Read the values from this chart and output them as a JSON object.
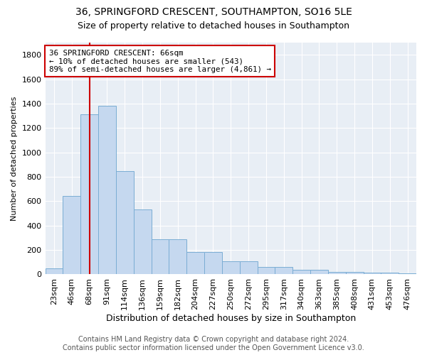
{
  "title": "36, SPRINGFORD CRESCENT, SOUTHAMPTON, SO16 5LE",
  "subtitle": "Size of property relative to detached houses in Southampton",
  "xlabel": "Distribution of detached houses by size in Southampton",
  "ylabel": "Number of detached properties",
  "categories": [
    "23sqm",
    "46sqm",
    "68sqm",
    "91sqm",
    "114sqm",
    "136sqm",
    "159sqm",
    "182sqm",
    "204sqm",
    "227sqm",
    "250sqm",
    "272sqm",
    "295sqm",
    "317sqm",
    "340sqm",
    "363sqm",
    "385sqm",
    "408sqm",
    "431sqm",
    "453sqm",
    "476sqm"
  ],
  "values": [
    50,
    645,
    1310,
    1380,
    845,
    530,
    290,
    285,
    185,
    185,
    110,
    110,
    60,
    60,
    38,
    38,
    22,
    22,
    12,
    12,
    8
  ],
  "bar_color": "#c5d8ef",
  "bar_edge_color": "#7aadd4",
  "vline_x": 2.0,
  "vline_color": "#cc0000",
  "annotation_box_text": "36 SPRINGFORD CRESCENT: 66sqm\n← 10% of detached houses are smaller (543)\n89% of semi-detached houses are larger (4,861) →",
  "annotation_box_color": "#cc0000",
  "annotation_box_bg": "#ffffff",
  "ylim": [
    0,
    1900
  ],
  "yticks": [
    0,
    200,
    400,
    600,
    800,
    1000,
    1200,
    1400,
    1600,
    1800
  ],
  "footer_line1": "Contains HM Land Registry data © Crown copyright and database right 2024.",
  "footer_line2": "Contains public sector information licensed under the Open Government Licence v3.0.",
  "bg_color": "#ffffff",
  "plot_bg_color": "#e8eef5",
  "title_fontsize": 10,
  "subtitle_fontsize": 9,
  "xlabel_fontsize": 9,
  "ylabel_fontsize": 8,
  "tick_fontsize": 8,
  "footer_fontsize": 7
}
